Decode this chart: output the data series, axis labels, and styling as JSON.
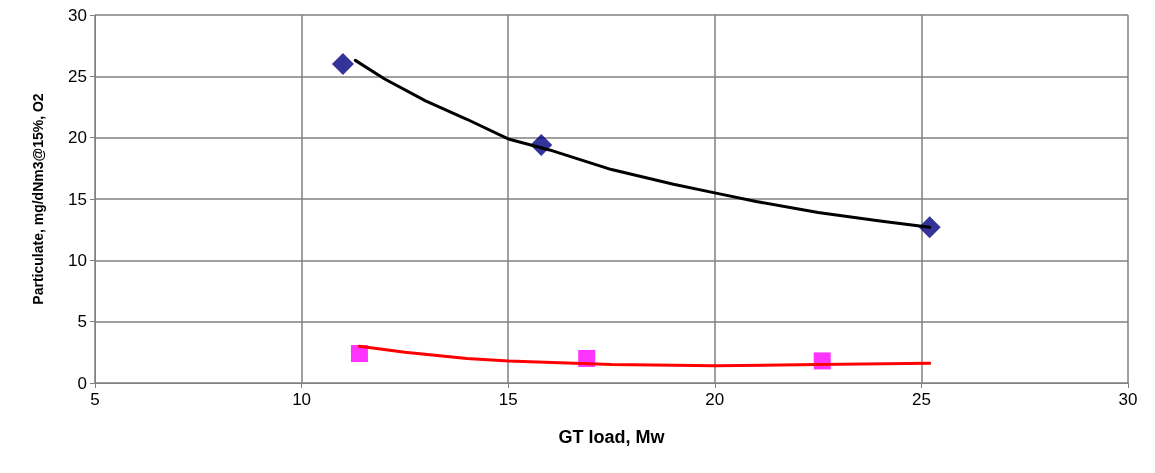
{
  "chart_data": {
    "type": "scatter",
    "xlabel": "GT load, Mw",
    "ylabel": "Particulate, mg/dNm3@15%, O2",
    "xlim": [
      5,
      30
    ],
    "xticks": [
      5,
      10,
      15,
      20,
      25,
      30
    ],
    "ylim": [
      0,
      30
    ],
    "yticks": [
      0,
      5,
      10,
      15,
      20,
      25,
      30
    ],
    "grid": true,
    "series": [
      {
        "marker": "diamond",
        "color": "#000080",
        "x": [
          11.0,
          15.8,
          25.2
        ],
        "values": [
          26.0,
          19.4,
          12.7
        ]
      },
      {
        "marker": "square",
        "color": "#ff00ff",
        "x": [
          11.4,
          16.9,
          22.6
        ],
        "values": [
          2.4,
          2.0,
          1.8
        ]
      },
      {
        "type": "line",
        "marker": "none",
        "color": "#000000",
        "x": [
          11.3,
          12,
          13,
          14,
          15,
          16,
          17.5,
          19,
          20,
          21,
          22.5,
          24,
          25.2
        ],
        "values": [
          26.3,
          24.8,
          23.0,
          21.5,
          19.9,
          19.0,
          17.4,
          16.2,
          15.5,
          14.8,
          13.9,
          13.2,
          12.7
        ]
      },
      {
        "type": "line",
        "marker": "none",
        "color": "#ff0000",
        "x": [
          11.4,
          12.5,
          14,
          15,
          17.5,
          20,
          22.5,
          25.2
        ],
        "values": [
          3.0,
          2.5,
          2.0,
          1.8,
          1.5,
          1.4,
          1.5,
          1.6
        ]
      }
    ]
  }
}
